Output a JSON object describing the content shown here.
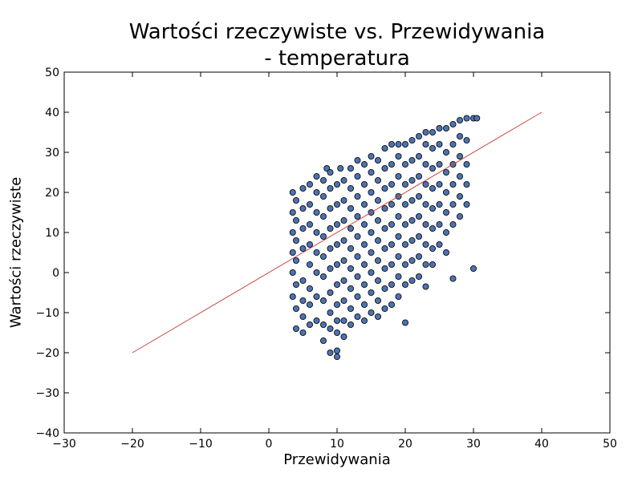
{
  "chart_data": {
    "type": "scatter",
    "title_line1": "Wartości rzeczywiste vs. Przewidywania",
    "title_line2": "- temperatura",
    "xlabel": "Przewidywania",
    "ylabel": "Wartości rzeczywiste",
    "xlim": [
      -30,
      50
    ],
    "ylim": [
      -40,
      50
    ],
    "xticks": [
      -30,
      -20,
      -10,
      0,
      10,
      20,
      30,
      40,
      50
    ],
    "yticks": [
      -40,
      -30,
      -20,
      -10,
      0,
      10,
      20,
      30,
      40,
      50
    ],
    "xtick_labels": [
      "−30",
      "−20",
      "−10",
      "0",
      "10",
      "20",
      "30",
      "40",
      "50"
    ],
    "ytick_labels": [
      "−40",
      "−30",
      "−20",
      "−10",
      "0",
      "10",
      "20",
      "30",
      "40",
      "50"
    ],
    "grid": false,
    "series": [
      {
        "marker_color": "#4c72b0",
        "points": [
          [
            3.5,
            -6
          ],
          [
            3.5,
            0
          ],
          [
            3.5,
            5
          ],
          [
            3.5,
            10
          ],
          [
            3.5,
            15
          ],
          [
            3.5,
            20
          ],
          [
            4,
            -14
          ],
          [
            4,
            -9
          ],
          [
            4,
            -3
          ],
          [
            4,
            3
          ],
          [
            4,
            8
          ],
          [
            4,
            13
          ],
          [
            4,
            18
          ],
          [
            5,
            -15
          ],
          [
            5,
            -11
          ],
          [
            5,
            -7
          ],
          [
            5,
            -2
          ],
          [
            5,
            6
          ],
          [
            5,
            11
          ],
          [
            5,
            16
          ],
          [
            5,
            21
          ],
          [
            6,
            -13
          ],
          [
            6,
            -8
          ],
          [
            6,
            -4
          ],
          [
            6,
            2
          ],
          [
            6,
            7
          ],
          [
            6,
            12
          ],
          [
            6,
            17
          ],
          [
            6,
            22
          ],
          [
            7,
            -12
          ],
          [
            7,
            -6
          ],
          [
            7,
            0
          ],
          [
            7,
            5
          ],
          [
            7,
            10
          ],
          [
            7,
            15
          ],
          [
            7,
            20
          ],
          [
            7,
            24
          ],
          [
            8,
            -17
          ],
          [
            8,
            -13
          ],
          [
            8,
            -7
          ],
          [
            8,
            -1
          ],
          [
            8,
            4
          ],
          [
            8,
            9
          ],
          [
            8,
            14
          ],
          [
            8,
            19
          ],
          [
            8,
            23
          ],
          [
            8.5,
            26
          ],
          [
            9,
            -20
          ],
          [
            9,
            -14
          ],
          [
            9,
            -10
          ],
          [
            9,
            -5
          ],
          [
            9,
            1
          ],
          [
            9,
            6
          ],
          [
            9,
            11
          ],
          [
            9,
            16
          ],
          [
            9,
            21
          ],
          [
            9,
            25
          ],
          [
            10,
            -21
          ],
          [
            10,
            -19.5
          ],
          [
            10,
            -15
          ],
          [
            10,
            -12
          ],
          [
            10,
            -8
          ],
          [
            10,
            -3
          ],
          [
            10,
            2
          ],
          [
            10,
            7
          ],
          [
            10,
            12
          ],
          [
            10,
            17
          ],
          [
            10,
            22
          ],
          [
            10.5,
            26
          ],
          [
            11,
            -16
          ],
          [
            11,
            -12
          ],
          [
            11,
            -7
          ],
          [
            11,
            -2
          ],
          [
            11,
            3
          ],
          [
            11,
            8
          ],
          [
            11,
            13
          ],
          [
            11,
            18
          ],
          [
            11,
            23
          ],
          [
            12,
            -13
          ],
          [
            12,
            -9
          ],
          [
            12,
            -4
          ],
          [
            12,
            1
          ],
          [
            12,
            6
          ],
          [
            12,
            11
          ],
          [
            12,
            16
          ],
          [
            12,
            21
          ],
          [
            12,
            26
          ],
          [
            13,
            -11
          ],
          [
            13,
            -6
          ],
          [
            13,
            -1
          ],
          [
            13,
            4
          ],
          [
            13,
            9
          ],
          [
            13,
            14
          ],
          [
            13,
            19
          ],
          [
            13,
            24
          ],
          [
            13,
            28
          ],
          [
            14,
            -12
          ],
          [
            14,
            -8
          ],
          [
            14,
            -3
          ],
          [
            14,
            2
          ],
          [
            14,
            7
          ],
          [
            14,
            12
          ],
          [
            14,
            17
          ],
          [
            14,
            22
          ],
          [
            14,
            27
          ],
          [
            15,
            -10
          ],
          [
            15,
            -5
          ],
          [
            15,
            0
          ],
          [
            15,
            5
          ],
          [
            15,
            10
          ],
          [
            15,
            15
          ],
          [
            15,
            20
          ],
          [
            15,
            25
          ],
          [
            15,
            29
          ],
          [
            16,
            -11
          ],
          [
            16,
            -7
          ],
          [
            16,
            -2
          ],
          [
            16,
            3
          ],
          [
            16,
            8
          ],
          [
            16,
            13
          ],
          [
            16,
            18
          ],
          [
            16,
            23
          ],
          [
            16,
            28
          ],
          [
            17,
            -9
          ],
          [
            17,
            -4
          ],
          [
            17,
            1
          ],
          [
            17,
            6
          ],
          [
            17,
            11
          ],
          [
            17,
            16
          ],
          [
            17,
            21
          ],
          [
            17,
            26
          ],
          [
            17,
            31
          ],
          [
            18,
            -8
          ],
          [
            18,
            -3
          ],
          [
            18,
            2
          ],
          [
            18,
            7
          ],
          [
            18,
            12
          ],
          [
            18,
            17
          ],
          [
            18,
            22
          ],
          [
            18,
            27
          ],
          [
            18,
            32
          ],
          [
            19,
            -6
          ],
          [
            19,
            -1
          ],
          [
            19,
            4
          ],
          [
            19,
            9
          ],
          [
            19,
            14
          ],
          [
            19,
            19
          ],
          [
            19,
            24
          ],
          [
            19,
            29
          ],
          [
            19,
            32
          ],
          [
            20,
            -12.5
          ],
          [
            20,
            -3
          ],
          [
            20,
            2
          ],
          [
            20,
            7
          ],
          [
            20,
            12
          ],
          [
            20,
            17
          ],
          [
            20,
            22
          ],
          [
            20,
            27
          ],
          [
            20,
            32
          ],
          [
            21,
            -2
          ],
          [
            21,
            3
          ],
          [
            21,
            8
          ],
          [
            21,
            13
          ],
          [
            21,
            18
          ],
          [
            21,
            23
          ],
          [
            21,
            28
          ],
          [
            21,
            33
          ],
          [
            22,
            -1
          ],
          [
            22,
            4
          ],
          [
            22,
            9
          ],
          [
            22,
            14
          ],
          [
            22,
            19
          ],
          [
            22,
            24
          ],
          [
            22,
            29
          ],
          [
            22,
            34
          ],
          [
            23,
            -3.5
          ],
          [
            23,
            2
          ],
          [
            23,
            7
          ],
          [
            23,
            12
          ],
          [
            23,
            17
          ],
          [
            23,
            22
          ],
          [
            23,
            27
          ],
          [
            23,
            32
          ],
          [
            23,
            35
          ],
          [
            24,
            2
          ],
          [
            24,
            6
          ],
          [
            24,
            11
          ],
          [
            24,
            16
          ],
          [
            24,
            21
          ],
          [
            24,
            26
          ],
          [
            24,
            31
          ],
          [
            24,
            35
          ],
          [
            25,
            7
          ],
          [
            25,
            12
          ],
          [
            25,
            17
          ],
          [
            25,
            22
          ],
          [
            25,
            27
          ],
          [
            25,
            32
          ],
          [
            25,
            36
          ],
          [
            26,
            5
          ],
          [
            26,
            10
          ],
          [
            26,
            15
          ],
          [
            26,
            20
          ],
          [
            26,
            25
          ],
          [
            26,
            30
          ],
          [
            26,
            36
          ],
          [
            27,
            -1.5
          ],
          [
            27,
            12
          ],
          [
            27,
            17
          ],
          [
            27,
            22
          ],
          [
            27,
            27
          ],
          [
            27,
            32
          ],
          [
            27,
            37
          ],
          [
            28,
            14
          ],
          [
            28,
            19
          ],
          [
            28,
            24
          ],
          [
            28,
            29
          ],
          [
            28,
            34
          ],
          [
            28,
            38
          ],
          [
            29,
            17
          ],
          [
            29,
            22
          ],
          [
            29,
            27
          ],
          [
            29,
            33
          ],
          [
            29,
            38.5
          ],
          [
            30,
            1
          ],
          [
            30,
            38.5
          ],
          [
            30.5,
            38.5
          ]
        ]
      }
    ],
    "reference_line": {
      "x": [
        -20,
        40
      ],
      "y": [
        -20,
        40
      ],
      "color": "#cc4444"
    }
  }
}
